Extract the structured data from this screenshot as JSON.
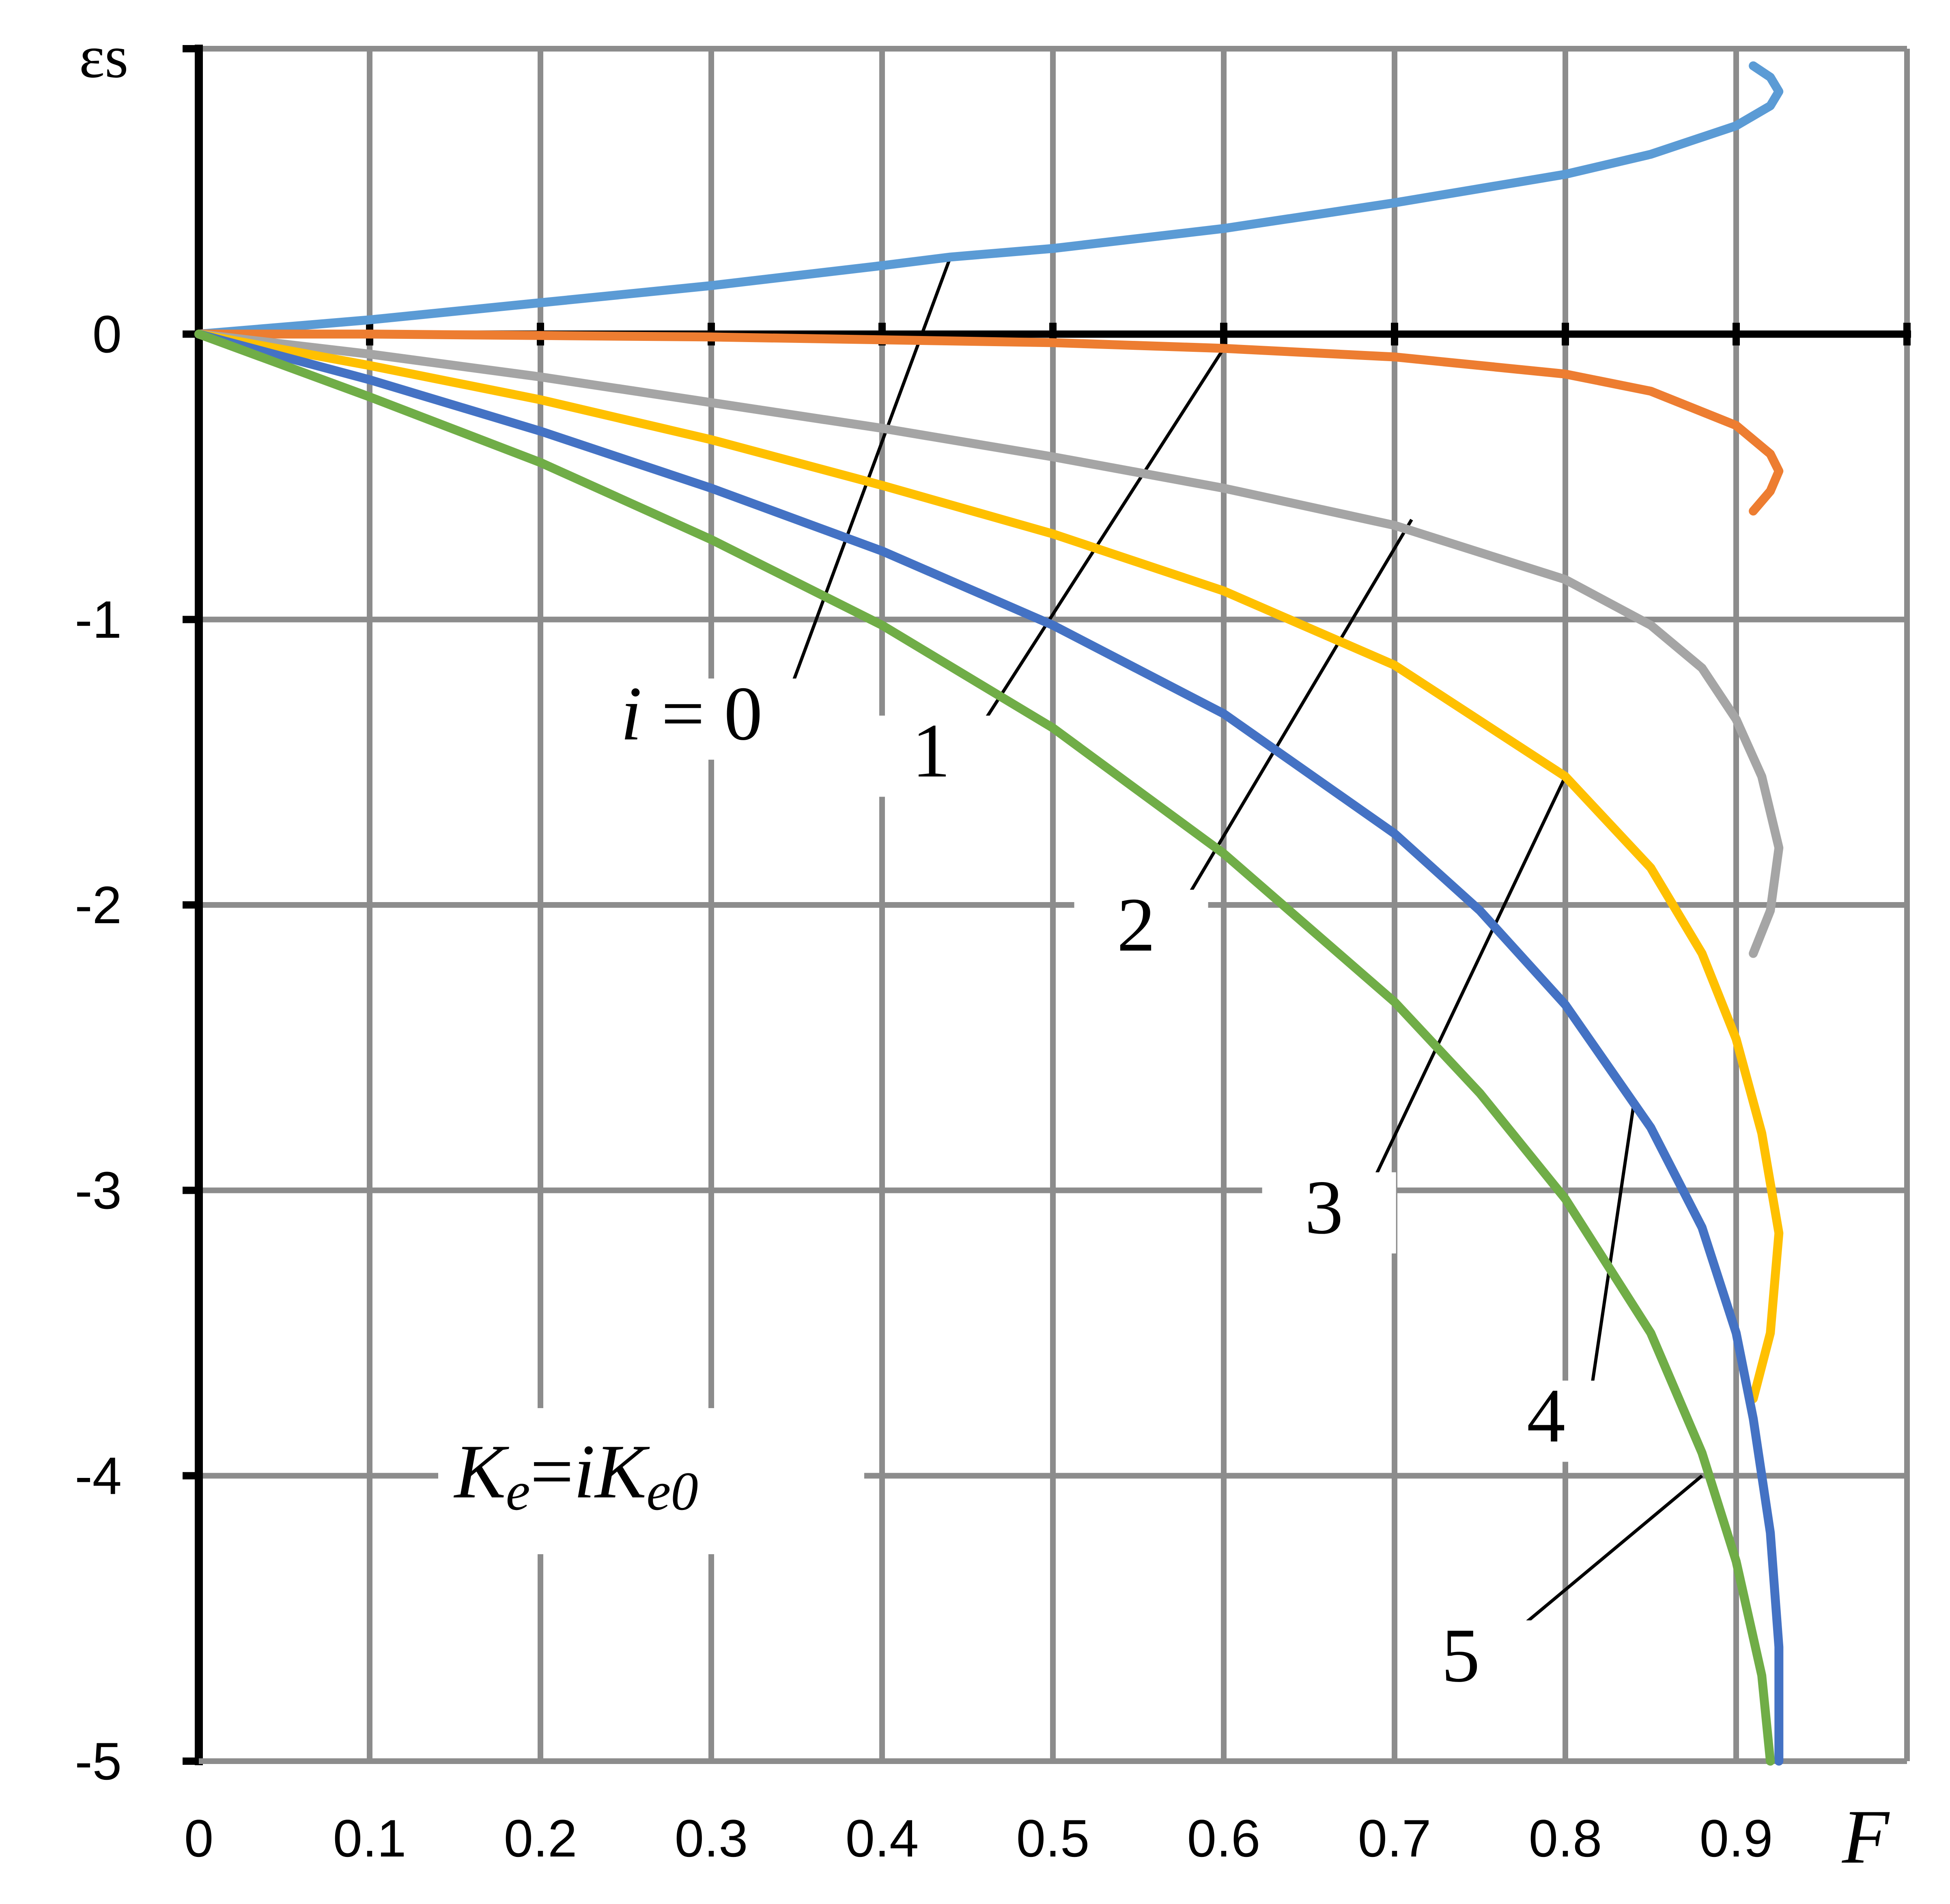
{
  "chart_data": {
    "type": "line",
    "ylabel": "εs",
    "xlabel": "F",
    "xlim": [
      0,
      1
    ],
    "ylim": [
      -5,
      1
    ],
    "grid": true,
    "x_ticks": [
      "0",
      "0.1",
      "0.2",
      "0.3",
      "0.4",
      "0.5",
      "0.6",
      "0.7",
      "0.8",
      "0.9"
    ],
    "y_ticks": [
      "0",
      "-1",
      "-2",
      "-3",
      "-4",
      "-5"
    ],
    "formula": {
      "lhs_main": "K",
      "lhs_sub": "e",
      "eq": "=",
      "i": "i",
      "rhs_main": "K",
      "rhs_sub": "e0"
    },
    "series": [
      {
        "label": "i = 0",
        "color": "#5b9bd5",
        "points": [
          [
            0,
            0
          ],
          [
            0.1,
            0.05
          ],
          [
            0.2,
            0.11
          ],
          [
            0.3,
            0.17
          ],
          [
            0.4,
            0.24
          ],
          [
            0.44,
            0.27
          ],
          [
            0.5,
            0.3
          ],
          [
            0.6,
            0.37
          ],
          [
            0.7,
            0.46
          ],
          [
            0.8,
            0.56
          ],
          [
            0.85,
            0.63
          ],
          [
            0.9,
            0.73
          ],
          [
            0.92,
            0.8
          ],
          [
            0.925,
            0.85
          ],
          [
            0.92,
            0.9
          ],
          [
            0.91,
            0.94
          ]
        ],
        "label_at": [
          0.44,
          0.27
        ],
        "label_text_at": [
          0.33,
          -1.42
        ]
      },
      {
        "label": "1",
        "color": "#ed7d31",
        "points": [
          [
            0,
            0
          ],
          [
            0.1,
            0
          ],
          [
            0.2,
            -0.005
          ],
          [
            0.3,
            -0.01
          ],
          [
            0.4,
            -0.02
          ],
          [
            0.5,
            -0.03
          ],
          [
            0.6,
            -0.05
          ],
          [
            0.7,
            -0.08
          ],
          [
            0.8,
            -0.14
          ],
          [
            0.85,
            -0.2
          ],
          [
            0.9,
            -0.32
          ],
          [
            0.92,
            -0.42
          ],
          [
            0.925,
            -0.48
          ],
          [
            0.92,
            -0.55
          ],
          [
            0.91,
            -0.62
          ]
        ],
        "label_at": [
          0.6,
          -0.05
        ],
        "label_text_at": [
          0.44,
          -1.55
        ]
      },
      {
        "label": "2",
        "color": "#a5a5a5",
        "points": [
          [
            0,
            0
          ],
          [
            0.1,
            -0.07
          ],
          [
            0.2,
            -0.15
          ],
          [
            0.3,
            -0.24
          ],
          [
            0.4,
            -0.33
          ],
          [
            0.5,
            -0.43
          ],
          [
            0.6,
            -0.54
          ],
          [
            0.7,
            -0.67
          ],
          [
            0.8,
            -0.86
          ],
          [
            0.85,
            -1.02
          ],
          [
            0.88,
            -1.17
          ],
          [
            0.9,
            -1.35
          ],
          [
            0.915,
            -1.55
          ],
          [
            0.925,
            -1.8
          ],
          [
            0.92,
            -2.02
          ],
          [
            0.91,
            -2.17
          ]
        ],
        "label_at": [
          0.71,
          -0.65
        ],
        "label_text_at": [
          0.56,
          -2.16
        ]
      },
      {
        "label": "3",
        "color": "#ffc000",
        "points": [
          [
            0,
            0
          ],
          [
            0.1,
            -0.11
          ],
          [
            0.2,
            -0.23
          ],
          [
            0.3,
            -0.37
          ],
          [
            0.4,
            -0.53
          ],
          [
            0.5,
            -0.7
          ],
          [
            0.6,
            -0.9
          ],
          [
            0.7,
            -1.16
          ],
          [
            0.8,
            -1.55
          ],
          [
            0.85,
            -1.87
          ],
          [
            0.88,
            -2.17
          ],
          [
            0.9,
            -2.47
          ],
          [
            0.915,
            -2.8
          ],
          [
            0.925,
            -3.15
          ],
          [
            0.92,
            -3.5
          ],
          [
            0.91,
            -3.73
          ]
        ],
        "label_at": [
          0.8,
          -1.55
        ],
        "label_text_at": [
          0.67,
          -3.15
        ]
      },
      {
        "label": "4",
        "color": "#4472c4",
        "points": [
          [
            0,
            0
          ],
          [
            0.1,
            -0.16
          ],
          [
            0.2,
            -0.34
          ],
          [
            0.3,
            -0.54
          ],
          [
            0.4,
            -0.76
          ],
          [
            0.5,
            -1.02
          ],
          [
            0.6,
            -1.33
          ],
          [
            0.7,
            -1.75
          ],
          [
            0.75,
            -2.02
          ],
          [
            0.8,
            -2.35
          ],
          [
            0.85,
            -2.78
          ],
          [
            0.88,
            -3.13
          ],
          [
            0.9,
            -3.5
          ],
          [
            0.91,
            -3.8
          ],
          [
            0.92,
            -4.2
          ],
          [
            0.925,
            -4.6
          ],
          [
            0.925,
            -5.0
          ]
        ],
        "label_at": [
          0.84,
          -2.7
        ],
        "label_text_at": [
          0.8,
          -3.88
        ]
      },
      {
        "label": "5",
        "color": "#70ad47",
        "points": [
          [
            0,
            0
          ],
          [
            0.1,
            -0.22
          ],
          [
            0.2,
            -0.45
          ],
          [
            0.3,
            -0.72
          ],
          [
            0.4,
            -1.02
          ],
          [
            0.5,
            -1.38
          ],
          [
            0.55,
            -1.6
          ],
          [
            0.6,
            -1.82
          ],
          [
            0.7,
            -2.34
          ],
          [
            0.75,
            -2.66
          ],
          [
            0.8,
            -3.03
          ],
          [
            0.85,
            -3.5
          ],
          [
            0.88,
            -3.92
          ],
          [
            0.9,
            -4.3
          ],
          [
            0.915,
            -4.7
          ],
          [
            0.92,
            -5.0
          ]
        ],
        "label_at": [
          0.88,
          -4.0
        ],
        "label_text_at": [
          0.75,
          -4.72
        ]
      }
    ]
  }
}
